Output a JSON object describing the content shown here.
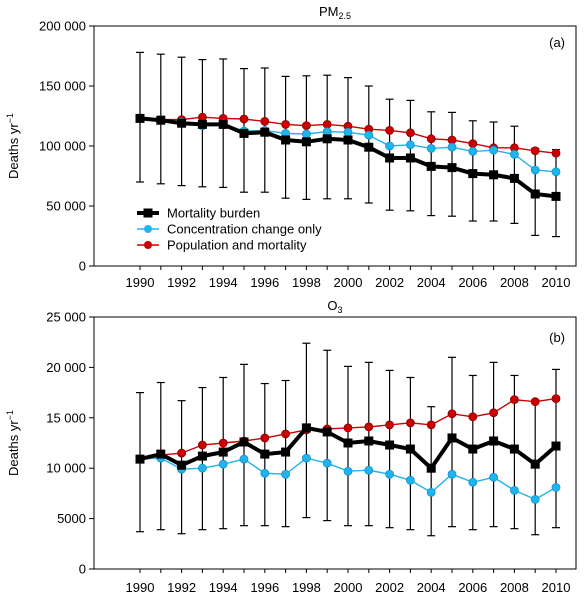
{
  "chart_data": [
    {
      "type": "line",
      "panel": "(a)",
      "title_main": "PM",
      "title_sub": "2.5",
      "ylabel_main": "Deaths yr",
      "ylabel_sup": "−1",
      "ylim": [
        0,
        200000
      ],
      "yticks": [
        0,
        50000,
        100000,
        150000,
        200000
      ],
      "ytick_labels": [
        "0",
        "50 000",
        "100 000",
        "150 000",
        "200 000"
      ],
      "x": [
        1990,
        1991,
        1992,
        1993,
        1994,
        1995,
        1996,
        1997,
        1998,
        1999,
        2000,
        2001,
        2002,
        2003,
        2004,
        2005,
        2006,
        2007,
        2008,
        2009,
        2010
      ],
      "xtick_labels": [
        "1990",
        "1992",
        "1994",
        "1996",
        "1998",
        "2000",
        "2002",
        "2004",
        "2006",
        "2008",
        "2010"
      ],
      "legend_position": "bottom-left",
      "series": [
        {
          "name": "Population and mortality",
          "color": "#cc0000",
          "values": [
            123000,
            122000,
            122000,
            124000,
            123000,
            122500,
            120500,
            118000,
            117000,
            118000,
            116500,
            114000,
            113000,
            111000,
            106000,
            105000,
            102000,
            98500,
            98500,
            96000,
            94000
          ]
        },
        {
          "name": "Concentration change only",
          "color": "#1eb4f0",
          "values": [
            123000,
            122000,
            120000,
            117000,
            118500,
            112500,
            113000,
            110500,
            110000,
            112000,
            111500,
            109000,
            100000,
            101000,
            98000,
            99000,
            95500,
            96500,
            93000,
            80000,
            78500
          ]
        },
        {
          "name": "Mortality burden",
          "color": "#000000",
          "values": [
            123000,
            121500,
            119000,
            118000,
            118000,
            110500,
            111500,
            105000,
            103500,
            106000,
            105000,
            99000,
            90000,
            90000,
            83000,
            82000,
            77000,
            76000,
            73000,
            60000,
            58000
          ],
          "error_low": [
            70000,
            68500,
            67000,
            66000,
            65500,
            61500,
            61500,
            56500,
            55500,
            56000,
            56000,
            52500,
            46500,
            46000,
            42000,
            41500,
            37500,
            37500,
            35500,
            25500,
            24500
          ],
          "error_high": [
            178000,
            176500,
            174000,
            172000,
            172500,
            164500,
            165000,
            158000,
            158500,
            159000,
            157000,
            150000,
            139000,
            138000,
            128500,
            128000,
            121000,
            120000,
            116500,
            98000,
            97000
          ]
        }
      ]
    },
    {
      "type": "line",
      "panel": "(b)",
      "title_main": "O",
      "title_sub": "3",
      "ylabel_main": "Deaths yr",
      "ylabel_sup": "−1",
      "ylim": [
        0,
        25000
      ],
      "yticks": [
        0,
        5000,
        10000,
        15000,
        20000,
        25000
      ],
      "ytick_labels": [
        "0",
        "5000",
        "10 000",
        "15 000",
        "20 000",
        "25 000"
      ],
      "x": [
        1990,
        1991,
        1992,
        1993,
        1994,
        1995,
        1996,
        1997,
        1998,
        1999,
        2000,
        2001,
        2002,
        2003,
        2004,
        2005,
        2006,
        2007,
        2008,
        2009,
        2010
      ],
      "xtick_labels": [
        "1990",
        "1992",
        "1994",
        "1996",
        "1998",
        "2000",
        "2002",
        "2004",
        "2006",
        "2008",
        "2010"
      ],
      "series": [
        {
          "name": "Population and mortality",
          "color": "#cc0000",
          "values": [
            10900,
            11300,
            11500,
            12300,
            12500,
            12700,
            13000,
            13400,
            13800,
            13900,
            14000,
            14100,
            14300,
            14500,
            14300,
            15400,
            15100,
            15500,
            16800,
            16600,
            16900
          ]
        },
        {
          "name": "Concentration change only",
          "color": "#1eb4f0",
          "values": [
            10900,
            11000,
            9900,
            10000,
            10400,
            10900,
            9500,
            9400,
            11000,
            10500,
            9700,
            9800,
            9400,
            8800,
            7600,
            9400,
            8600,
            9100,
            7800,
            6900,
            8100
          ]
        },
        {
          "name": "Mortality burden",
          "color": "#000000",
          "values": [
            10900,
            11400,
            10300,
            11200,
            11600,
            12600,
            11400,
            11600,
            14000,
            13600,
            12500,
            12700,
            12300,
            11900,
            10000,
            13000,
            11900,
            12700,
            11900,
            10400,
            12200
          ],
          "error_low": [
            3700,
            3900,
            3500,
            3900,
            4000,
            4300,
            4300,
            4200,
            5100,
            4800,
            4300,
            4300,
            4100,
            3900,
            3300,
            4200,
            3900,
            4200,
            4000,
            3400,
            4100
          ],
          "error_high": [
            17500,
            18500,
            16700,
            18000,
            19000,
            20300,
            18400,
            18700,
            22400,
            21700,
            20100,
            20500,
            19700,
            19000,
            16100,
            21000,
            19200,
            20500,
            19200,
            16700,
            19800
          ]
        }
      ]
    }
  ]
}
